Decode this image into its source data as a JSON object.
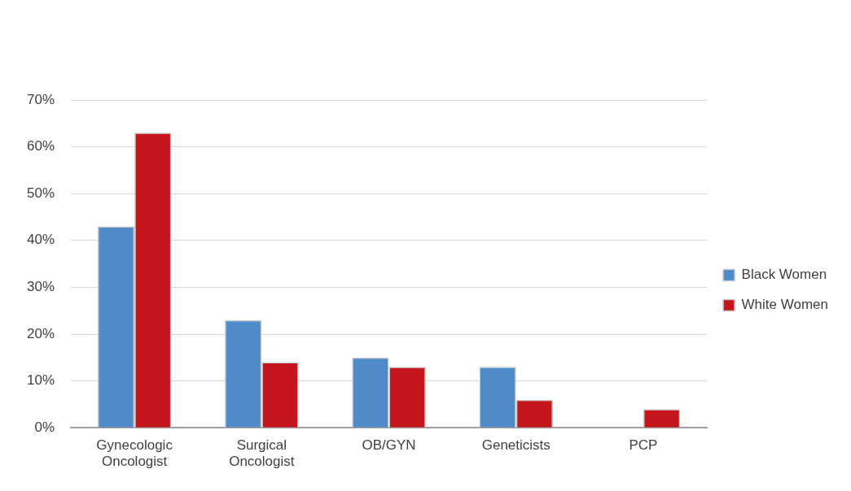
{
  "chart_data": {
    "type": "bar",
    "categories": [
      "Gynecologic Oncologist",
      "Surgical Oncologist",
      "OB/GYN",
      "Geneticists",
      "PCP"
    ],
    "series": [
      {
        "name": "Black Women",
        "color": "#4f8ac9",
        "values": [
          43,
          23,
          15,
          13,
          0
        ]
      },
      {
        "name": "White Women",
        "color": "#c4161c",
        "values": [
          63,
          14,
          13,
          6,
          4
        ]
      }
    ],
    "ylim": [
      0,
      70
    ],
    "yticks": [
      {
        "value": 0,
        "label": "0%"
      },
      {
        "value": 10,
        "label": "10%"
      },
      {
        "value": 20,
        "label": "20%"
      },
      {
        "value": 30,
        "label": "30%"
      },
      {
        "value": 40,
        "label": "40%"
      },
      {
        "value": 50,
        "label": "50%"
      },
      {
        "value": 60,
        "label": "60%"
      },
      {
        "value": 70,
        "label": "70%"
      }
    ],
    "grid": "y",
    "legend": "right"
  }
}
